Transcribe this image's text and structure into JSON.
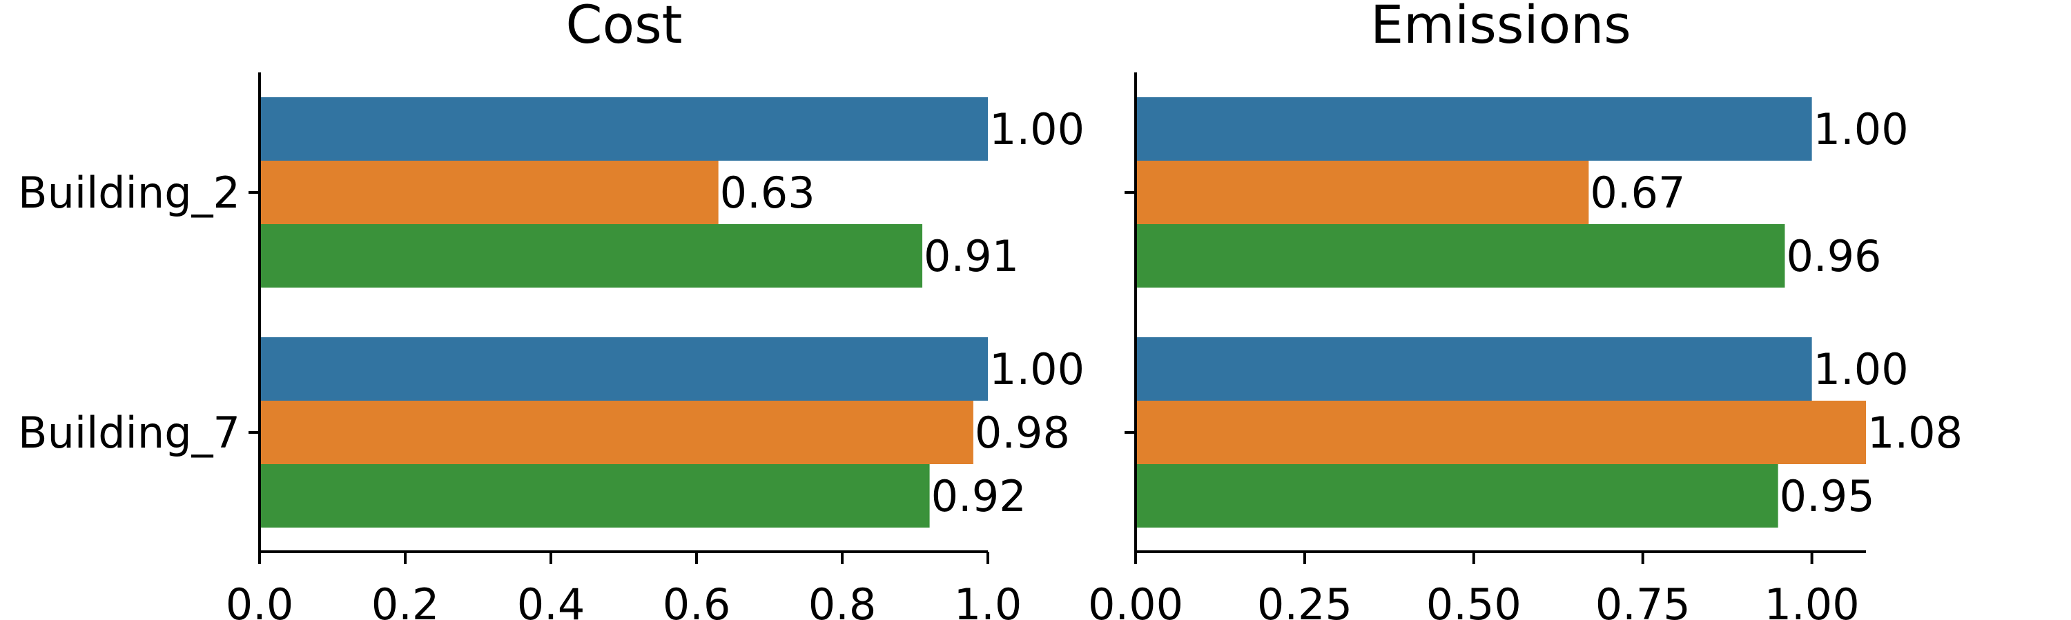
{
  "chart_data": [
    {
      "type": "bar",
      "orientation": "horizontal",
      "title": "Cost",
      "categories": [
        "Building_2",
        "Building_7"
      ],
      "series": [
        {
          "color": "#3274a1",
          "values": [
            1.0,
            1.0
          ],
          "labels": [
            "1.00",
            "1.00"
          ]
        },
        {
          "color": "#e1812c",
          "values": [
            0.63,
            0.98
          ],
          "labels": [
            "0.63",
            "0.98"
          ]
        },
        {
          "color": "#3a923a",
          "values": [
            0.91,
            0.92
          ],
          "labels": [
            "0.91",
            "0.92"
          ]
        }
      ],
      "xlim": [
        0,
        1.0
      ],
      "xticks": [
        {
          "value": 0.0,
          "label": "0.0"
        },
        {
          "value": 0.2,
          "label": "0.2"
        },
        {
          "value": 0.4,
          "label": "0.4"
        },
        {
          "value": 0.6,
          "label": "0.6"
        },
        {
          "value": 0.8,
          "label": "0.8"
        },
        {
          "value": 1.0,
          "label": "1.0"
        }
      ],
      "grid": false
    },
    {
      "type": "bar",
      "orientation": "horizontal",
      "title": "Emissions",
      "categories": [
        "Building_2",
        "Building_7"
      ],
      "series": [
        {
          "color": "#3274a1",
          "values": [
            1.0,
            1.0
          ],
          "labels": [
            "1.00",
            "1.00"
          ]
        },
        {
          "color": "#e1812c",
          "values": [
            0.67,
            1.08
          ],
          "labels": [
            "0.67",
            "1.08"
          ]
        },
        {
          "color": "#3a923a",
          "values": [
            0.96,
            0.95
          ],
          "labels": [
            "0.96",
            "0.95"
          ]
        }
      ],
      "xlim": [
        0,
        1.08
      ],
      "xticks": [
        {
          "value": 0.0,
          "label": "0.00"
        },
        {
          "value": 0.25,
          "label": "0.25"
        },
        {
          "value": 0.5,
          "label": "0.50"
        },
        {
          "value": 0.75,
          "label": "0.75"
        },
        {
          "value": 1.0,
          "label": "1.00"
        }
      ],
      "grid": false
    }
  ]
}
